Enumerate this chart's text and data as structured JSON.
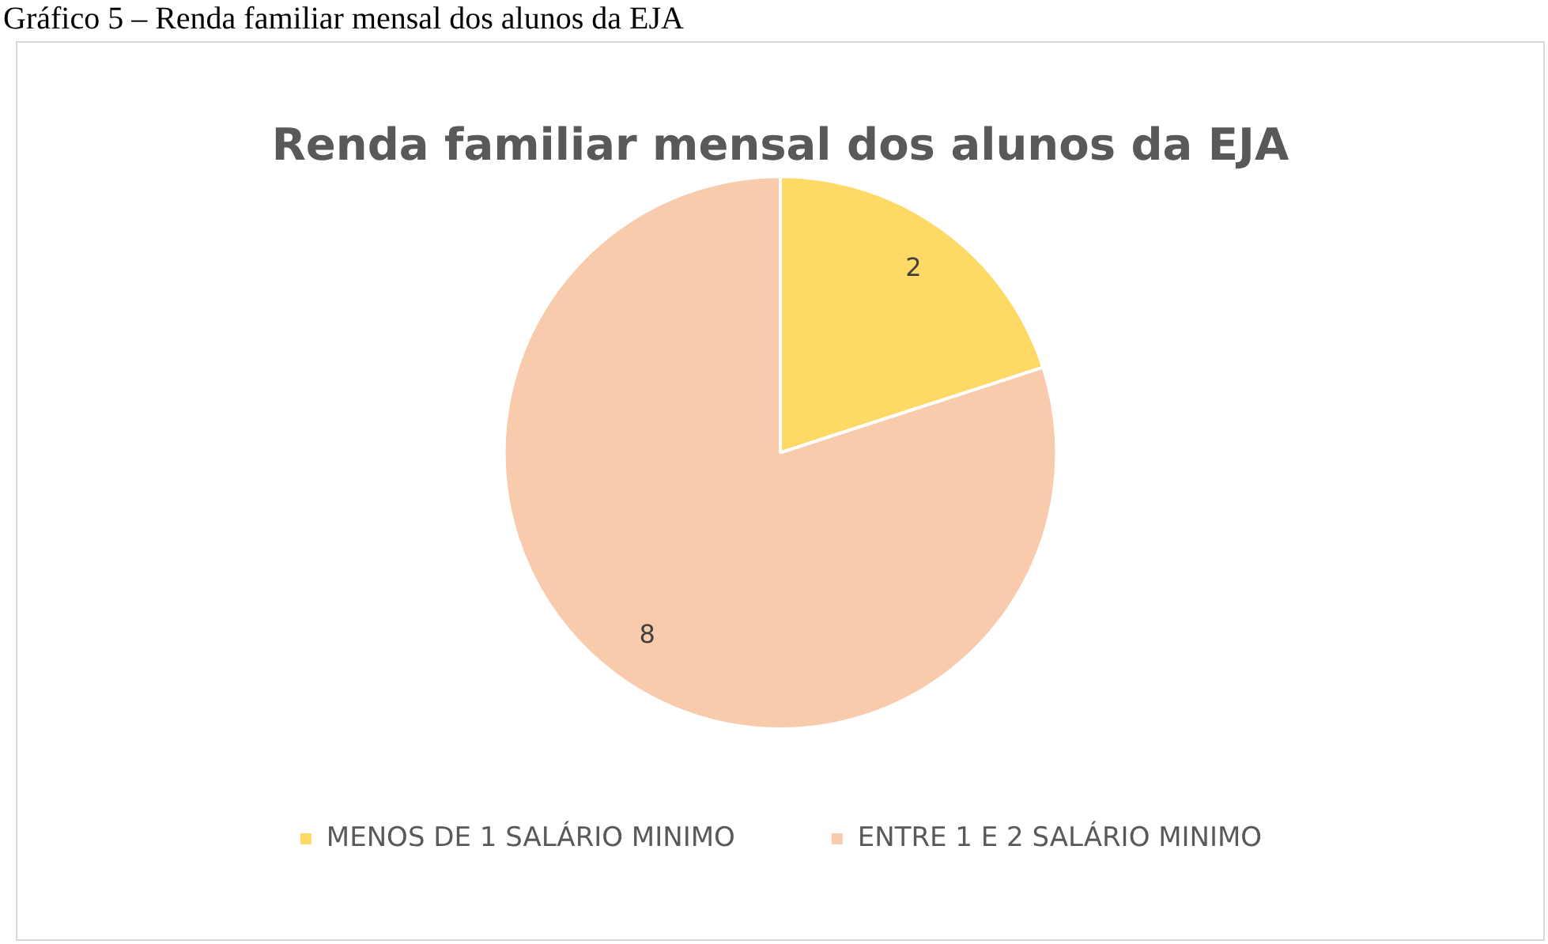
{
  "chart_data": {
    "type": "pie",
    "title": "Renda familiar mensal dos alunos da EJA",
    "annotations": [
      "Gráfico 5 – Renda familiar mensal dos alunos da EJA"
    ],
    "categories": [
      "MENOS DE 1 SALÁRIO MINIMO",
      "ENTRE 1 E 2 SALÁRIO MINIMO"
    ],
    "values": [
      2,
      8
    ],
    "colors": [
      "#ffd966",
      "#f8cbad"
    ],
    "data_labels": true,
    "legend": "bottom"
  }
}
